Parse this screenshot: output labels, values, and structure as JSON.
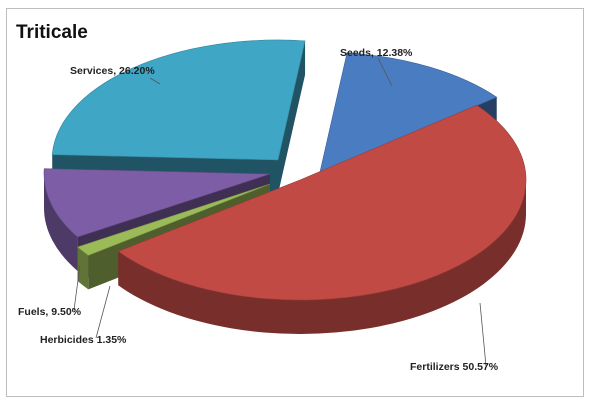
{
  "chart_data": {
    "type": "pie",
    "title": "Triticale",
    "three_d": true,
    "exploded": true,
    "slices": [
      {
        "name": "Seeds",
        "value": 12.38,
        "label": "Seeds, 12.38%",
        "color": "#4a7cc2"
      },
      {
        "name": "Fertilizers",
        "value": 50.57,
        "label": "Fertilizers 50.57%",
        "color": "#c24a45"
      },
      {
        "name": "Herbicides",
        "value": 1.35,
        "label": "Herbicides 1.35%",
        "color": "#9bbb59"
      },
      {
        "name": "Fuels",
        "value": 9.5,
        "label": "Fuels, 9.50%",
        "color": "#7d5ea6"
      },
      {
        "name": "Services",
        "value": 26.2,
        "label": "Services, 26.20%",
        "color": "#3fa6c6"
      }
    ]
  }
}
